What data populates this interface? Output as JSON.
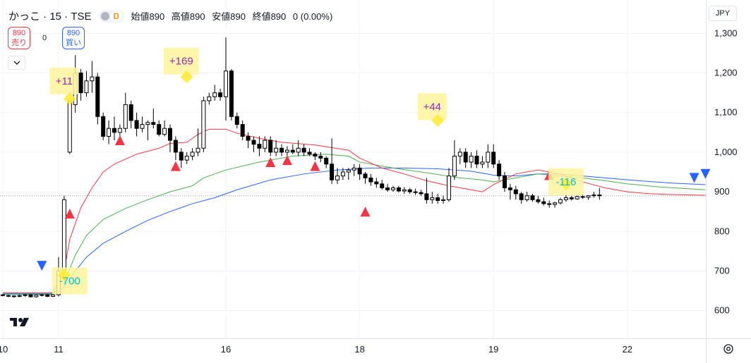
{
  "header": {
    "symbol": "かっこ · 15 · TSE",
    "badge": "D",
    "open_label": "始値",
    "open_value": "890",
    "high_label": "高値",
    "high_value": "890",
    "low_label": "安値",
    "low_value": "890",
    "close_label": "終値",
    "close_value": "890",
    "change": "0 (0.00%)"
  },
  "trade": {
    "sell_price": "890",
    "sell_label": "売り",
    "buy_price": "890",
    "buy_label": "買い",
    "spread": "0"
  },
  "currency": "JPY",
  "colors": {
    "up": "#ffffff",
    "down": "#000000",
    "red_line": "#f23645",
    "green_line": "#4caf50",
    "blue_line": "#2962ff",
    "buy_marker": "#f23645",
    "sell_marker": "#2962ff",
    "label_bg": "#fff59d",
    "profit_text": "#9c27b0",
    "loss_text": "#00bcd4"
  },
  "chart_data": {
    "type": "candlestick",
    "interval_minutes": 15,
    "x_tick_labels": [
      {
        "label": "10",
        "index": 0
      },
      {
        "label": "11",
        "index": 10
      },
      {
        "label": "16",
        "index": 40
      },
      {
        "label": "18",
        "index": 64
      },
      {
        "label": "19",
        "index": 88
      },
      {
        "label": "22",
        "index": 112
      }
    ],
    "y_ticks": [
      600,
      700,
      800,
      900,
      1000,
      1100,
      1200,
      1300
    ],
    "y_tick_labels": [
      "600",
      "700",
      "800",
      "900",
      "1,000",
      "1,100",
      "1,200",
      "1,300"
    ],
    "ylim": [
      530,
      1370
    ],
    "last_price": 890,
    "candles": [
      [
        640,
        641,
        636,
        638
      ],
      [
        638,
        640,
        634,
        637
      ],
      [
        637,
        639,
        633,
        636
      ],
      [
        636,
        640,
        634,
        638
      ],
      [
        638,
        642,
        635,
        640
      ],
      [
        640,
        641,
        633,
        635
      ],
      [
        635,
        640,
        633,
        639
      ],
      [
        639,
        642,
        636,
        640
      ],
      [
        640,
        642,
        634,
        636
      ],
      [
        636,
        641,
        634,
        640
      ],
      [
        640,
        735,
        636,
        700
      ],
      [
        700,
        890,
        680,
        880
      ],
      [
        1000,
        1130,
        995,
        1130
      ],
      [
        1120,
        1245,
        1100,
        1200
      ],
      [
        1200,
        1210,
        1130,
        1150
      ],
      [
        1150,
        1205,
        1140,
        1180
      ],
      [
        1180,
        1230,
        1150,
        1190
      ],
      [
        1190,
        1200,
        1070,
        1090
      ],
      [
        1090,
        1100,
        1030,
        1040
      ],
      [
        1040,
        1080,
        1020,
        1060
      ],
      [
        1060,
        1090,
        1030,
        1050
      ],
      [
        1050,
        1070,
        1040,
        1060
      ],
      [
        1060,
        1150,
        1050,
        1120
      ],
      [
        1120,
        1130,
        1060,
        1080
      ],
      [
        1080,
        1100,
        1040,
        1060
      ],
      [
        1060,
        1090,
        1050,
        1070
      ],
      [
        1070,
        1080,
        1030,
        1075
      ],
      [
        1075,
        1110,
        1060,
        1070
      ],
      [
        1070,
        1080,
        1040,
        1045
      ],
      [
        1045,
        1080,
        1040,
        1060
      ],
      [
        1060,
        1070,
        1000,
        1030
      ],
      [
        1030,
        1040,
        980,
        1000
      ],
      [
        1000,
        1010,
        960,
        980
      ],
      [
        980,
        1000,
        970,
        990
      ],
      [
        990,
        1010,
        980,
        1000
      ],
      [
        1000,
        1060,
        990,
        1010
      ],
      [
        1010,
        1140,
        1000,
        1130
      ],
      [
        1130,
        1150,
        1120,
        1140
      ],
      [
        1140,
        1170,
        1130,
        1150
      ],
      [
        1150,
        1160,
        1130,
        1140
      ],
      [
        1140,
        1290,
        1080,
        1205
      ],
      [
        1205,
        1210,
        1080,
        1090
      ],
      [
        1090,
        1100,
        1060,
        1070
      ],
      [
        1070,
        1080,
        1030,
        1040
      ],
      [
        1040,
        1050,
        1010,
        1030
      ],
      [
        1030,
        1040,
        1000,
        1020
      ],
      [
        1020,
        1040,
        990,
        1010
      ],
      [
        1010,
        1040,
        1000,
        1030
      ],
      [
        1030,
        1040,
        990,
        1000
      ],
      [
        1000,
        1030,
        990,
        1010
      ],
      [
        1010,
        1020,
        990,
        1000
      ],
      [
        1000,
        1015,
        990,
        1005
      ],
      [
        1005,
        1020,
        995,
        1000
      ],
      [
        1000,
        1030,
        990,
        1010
      ],
      [
        1010,
        1020,
        990,
        1000
      ],
      [
        1000,
        1010,
        990,
        995
      ],
      [
        995,
        1000,
        980,
        990
      ],
      [
        990,
        1000,
        975,
        985
      ],
      [
        985,
        990,
        960,
        970
      ],
      [
        970,
        1035,
        920,
        930
      ],
      [
        930,
        960,
        920,
        940
      ],
      [
        940,
        960,
        930,
        950
      ],
      [
        950,
        960,
        930,
        955
      ],
      [
        955,
        970,
        940,
        960
      ],
      [
        960,
        970,
        930,
        945
      ],
      [
        945,
        950,
        920,
        935
      ],
      [
        935,
        945,
        915,
        925
      ],
      [
        925,
        935,
        910,
        920
      ],
      [
        920,
        930,
        905,
        910
      ],
      [
        910,
        920,
        900,
        905
      ],
      [
        905,
        915,
        900,
        910
      ],
      [
        910,
        915,
        898,
        902
      ],
      [
        902,
        912,
        895,
        905
      ],
      [
        905,
        910,
        895,
        900
      ],
      [
        900,
        908,
        892,
        898
      ],
      [
        898,
        905,
        890,
        895
      ],
      [
        895,
        935,
        870,
        880
      ],
      [
        880,
        900,
        870,
        885
      ],
      [
        885,
        895,
        870,
        878
      ],
      [
        878,
        890,
        870,
        880
      ],
      [
        880,
        960,
        875,
        940
      ],
      [
        940,
        1030,
        930,
        990
      ],
      [
        990,
        1010,
        970,
        1000
      ],
      [
        1000,
        1010,
        960,
        975
      ],
      [
        975,
        1000,
        960,
        990
      ],
      [
        990,
        1005,
        960,
        970
      ],
      [
        970,
        990,
        960,
        975
      ],
      [
        975,
        1020,
        960,
        1000
      ],
      [
        1000,
        1020,
        960,
        970
      ],
      [
        970,
        980,
        930,
        940
      ],
      [
        940,
        950,
        900,
        910
      ],
      [
        910,
        920,
        880,
        905
      ],
      [
        905,
        915,
        880,
        895
      ],
      [
        895,
        900,
        870,
        880
      ],
      [
        880,
        900,
        875,
        890
      ],
      [
        890,
        895,
        875,
        880
      ],
      [
        880,
        890,
        870,
        875
      ],
      [
        875,
        885,
        865,
        870
      ],
      [
        870,
        878,
        860,
        868
      ],
      [
        868,
        875,
        860,
        872
      ],
      [
        872,
        885,
        868,
        880
      ],
      [
        880,
        892,
        875,
        885
      ],
      [
        885,
        890,
        878,
        882
      ],
      [
        882,
        890,
        880,
        888
      ],
      [
        888,
        895,
        882,
        886
      ],
      [
        886,
        892,
        880,
        890
      ],
      [
        890,
        900,
        885,
        892
      ],
      [
        892,
        910,
        880,
        890
      ]
    ],
    "ma_red": [
      [
        0,
        645
      ],
      [
        9,
        645
      ],
      [
        11,
        700
      ],
      [
        12,
        780
      ],
      [
        14,
        860
      ],
      [
        16,
        910
      ],
      [
        18,
        950
      ],
      [
        20,
        970
      ],
      [
        24,
        995
      ],
      [
        28,
        1010
      ],
      [
        30,
        1022
      ],
      [
        33,
        1025
      ],
      [
        35,
        1045
      ],
      [
        37,
        1058
      ],
      [
        40,
        1058
      ],
      [
        42,
        1048
      ],
      [
        46,
        1035
      ],
      [
        50,
        1025
      ],
      [
        56,
        1018
      ],
      [
        62,
        1005
      ],
      [
        64,
        985
      ],
      [
        68,
        960
      ],
      [
        72,
        945
      ],
      [
        76,
        928
      ],
      [
        80,
        915
      ],
      [
        84,
        905
      ],
      [
        86,
        900
      ],
      [
        88,
        918
      ],
      [
        92,
        945
      ],
      [
        96,
        955
      ],
      [
        100,
        945
      ],
      [
        104,
        925
      ],
      [
        108,
        910
      ],
      [
        112,
        900
      ],
      [
        116,
        895
      ],
      [
        120,
        893
      ],
      [
        126,
        891
      ]
    ],
    "ma_green": [
      [
        0,
        643
      ],
      [
        9,
        643
      ],
      [
        11,
        670
      ],
      [
        13,
        740
      ],
      [
        15,
        790
      ],
      [
        18,
        830
      ],
      [
        22,
        858
      ],
      [
        26,
        880
      ],
      [
        30,
        900
      ],
      [
        34,
        915
      ],
      [
        36,
        935
      ],
      [
        40,
        955
      ],
      [
        46,
        975
      ],
      [
        52,
        990
      ],
      [
        58,
        995
      ],
      [
        62,
        990
      ],
      [
        64,
        975
      ],
      [
        70,
        960
      ],
      [
        76,
        948
      ],
      [
        82,
        935
      ],
      [
        86,
        930
      ],
      [
        88,
        925
      ],
      [
        92,
        935
      ],
      [
        96,
        945
      ],
      [
        100,
        940
      ],
      [
        104,
        935
      ],
      [
        108,
        928
      ],
      [
        112,
        920
      ],
      [
        118,
        912
      ],
      [
        126,
        905
      ]
    ],
    "ma_blue": [
      [
        0,
        641
      ],
      [
        9,
        641
      ],
      [
        11,
        660
      ],
      [
        13,
        700
      ],
      [
        15,
        735
      ],
      [
        18,
        770
      ],
      [
        22,
        800
      ],
      [
        26,
        828
      ],
      [
        30,
        850
      ],
      [
        34,
        870
      ],
      [
        38,
        885
      ],
      [
        42,
        905
      ],
      [
        48,
        930
      ],
      [
        54,
        945
      ],
      [
        60,
        955
      ],
      [
        66,
        960
      ],
      [
        72,
        960
      ],
      [
        78,
        958
      ],
      [
        84,
        952
      ],
      [
        88,
        942
      ],
      [
        92,
        940
      ],
      [
        96,
        945
      ],
      [
        100,
        945
      ],
      [
        104,
        940
      ],
      [
        108,
        935
      ],
      [
        114,
        928
      ],
      [
        120,
        922
      ],
      [
        126,
        918
      ]
    ],
    "buy_markers": [
      {
        "index": 12,
        "price": 845
      },
      {
        "index": 21,
        "price": 1030
      },
      {
        "index": 31,
        "price": 965
      },
      {
        "index": 48,
        "price": 975
      },
      {
        "index": 51,
        "price": 980
      },
      {
        "index": 56,
        "price": 965
      },
      {
        "index": 65,
        "price": 850
      },
      {
        "index": 98,
        "price": 942
      }
    ],
    "sell_markers": [
      {
        "index": 7,
        "price": 713
      },
      {
        "index": 124,
        "price": 935
      },
      {
        "index": 126,
        "price": 945
      }
    ],
    "trade_labels": [
      {
        "text": "+11",
        "index": 11,
        "price": 1180,
        "kind": "profit",
        "marker": {
          "index": 12,
          "price": 1135
        }
      },
      {
        "text": "+169",
        "index": 32,
        "price": 1230,
        "kind": "profit",
        "marker": {
          "index": 33,
          "price": 1190
        }
      },
      {
        "text": "+44",
        "index": 77,
        "price": 1115,
        "kind": "profit",
        "marker": {
          "index": 78,
          "price": 1080
        }
      },
      {
        "text": "-700",
        "index": 12,
        "price": 675,
        "kind": "loss",
        "marker": {
          "index": 11,
          "price": 690
        }
      },
      {
        "text": "-116",
        "index": 101,
        "price": 925,
        "kind": "loss",
        "marker": {
          "index": 101,
          "price": 920
        }
      }
    ]
  }
}
